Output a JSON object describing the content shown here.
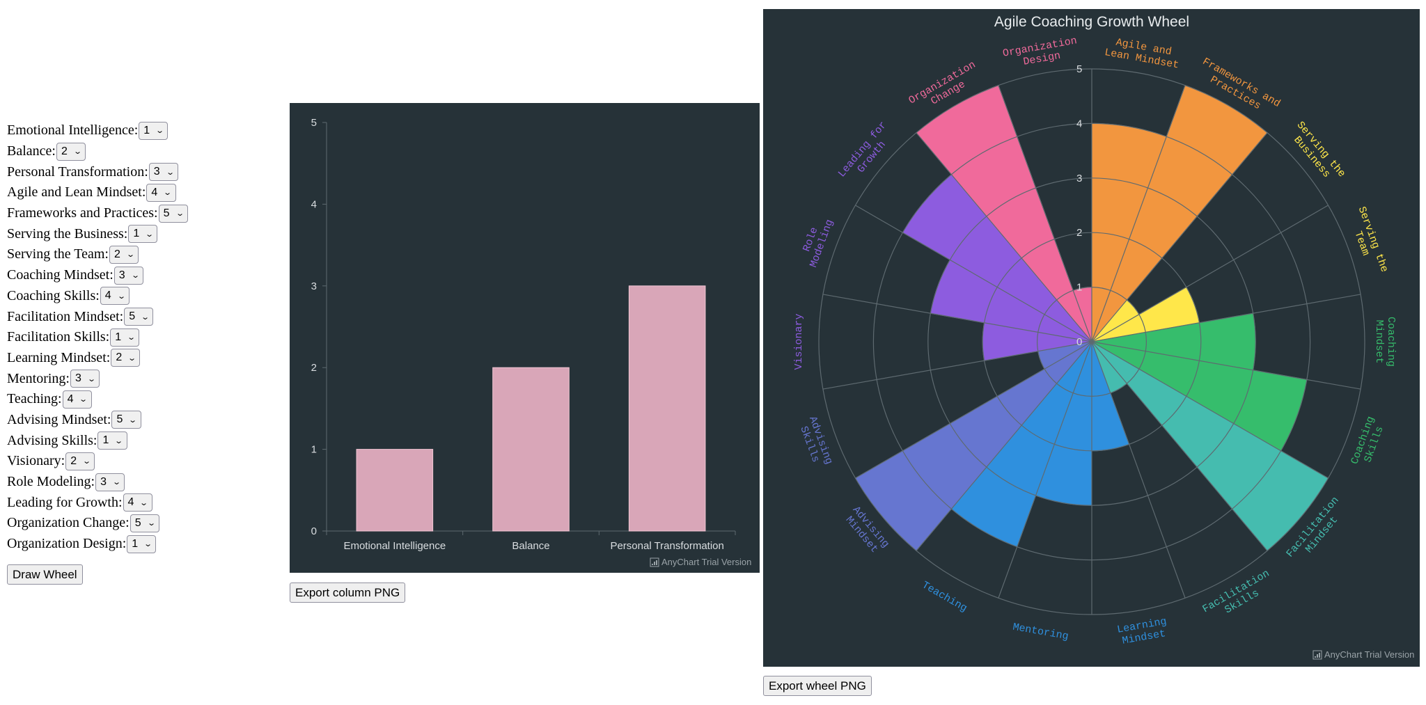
{
  "form": {
    "fields": [
      {
        "label": "Emotional Intelligence:",
        "value": "1"
      },
      {
        "label": "Balance:",
        "value": "2"
      },
      {
        "label": "Personal Transformation:",
        "value": "3"
      },
      {
        "label": "Agile and Lean Mindset:",
        "value": "4"
      },
      {
        "label": "Frameworks and Practices:",
        "value": "5"
      },
      {
        "label": "Serving the Business:",
        "value": "1"
      },
      {
        "label": "Serving the Team:",
        "value": "2"
      },
      {
        "label": "Coaching Mindset:",
        "value": "3"
      },
      {
        "label": "Coaching Skills:",
        "value": "4"
      },
      {
        "label": "Facilitation Mindset:",
        "value": "5"
      },
      {
        "label": "Facilitation Skills:",
        "value": "1"
      },
      {
        "label": "Learning Mindset:",
        "value": "2"
      },
      {
        "label": "Mentoring:",
        "value": "3"
      },
      {
        "label": "Teaching:",
        "value": "4"
      },
      {
        "label": "Advising Mindset:",
        "value": "5"
      },
      {
        "label": "Advising Skills:",
        "value": "1"
      },
      {
        "label": "Visionary:",
        "value": "2"
      },
      {
        "label": "Role Modeling:",
        "value": "3"
      },
      {
        "label": "Leading for Growth:",
        "value": "4"
      },
      {
        "label": "Organization Change:",
        "value": "5"
      },
      {
        "label": "Organization Design:",
        "value": "1"
      }
    ],
    "draw_button": "Draw Wheel"
  },
  "export": {
    "column_button": "Export column PNG",
    "wheel_button": "Export wheel PNG"
  },
  "watermark": "AnyChart Trial Version",
  "colors": {
    "chart_bg": "#263238",
    "column_bar": "#d9a6b8",
    "axis_text": "#d9dde0",
    "grid": "#5e6a70"
  },
  "chart_data": [
    {
      "type": "bar",
      "categories": [
        "Emotional Intelligence",
        "Balance",
        "Personal Transformation"
      ],
      "values": [
        1,
        2,
        3
      ],
      "ylim": [
        0,
        5
      ],
      "yticks": [
        0,
        1,
        2,
        3,
        4,
        5
      ]
    },
    {
      "type": "polar-bar",
      "title": "Agile Coaching Growth Wheel",
      "ylim": [
        0,
        5
      ],
      "rticks": [
        0,
        1,
        2,
        3,
        4,
        5
      ],
      "categories": [
        {
          "label": "Agile and Lean Mindset",
          "value": 4,
          "color": "#f2963f"
        },
        {
          "label": "Frameworks and Practices",
          "value": 5,
          "color": "#f2963f"
        },
        {
          "label": "Serving the Business",
          "value": 1,
          "color": "#ffe74a"
        },
        {
          "label": "Serving the Team",
          "value": 2,
          "color": "#ffe74a"
        },
        {
          "label": "Coaching Mindset",
          "value": 3,
          "color": "#36bd6c"
        },
        {
          "label": "Coaching Skills",
          "value": 4,
          "color": "#36bd6c"
        },
        {
          "label": "Facilitation Mindset",
          "value": 5,
          "color": "#45bcaf"
        },
        {
          "label": "Facilitation Skills",
          "value": 1,
          "color": "#45bcaf"
        },
        {
          "label": "Learning Mindset",
          "value": 2,
          "color": "#2f90de"
        },
        {
          "label": "Mentoring",
          "value": 3,
          "color": "#2f90de"
        },
        {
          "label": "Teaching",
          "value": 4,
          "color": "#2f90de"
        },
        {
          "label": "Advising Mindset",
          "value": 5,
          "color": "#6676d0"
        },
        {
          "label": "Advising Skills",
          "value": 1,
          "color": "#6676d0"
        },
        {
          "label": "Visionary",
          "value": 2,
          "color": "#8d5cdf"
        },
        {
          "label": "Role Modeling",
          "value": 3,
          "color": "#8d5cdf"
        },
        {
          "label": "Leading for Growth",
          "value": 4,
          "color": "#8d5cdf"
        },
        {
          "label": "Organization Change",
          "value": 5,
          "color": "#f06a9b"
        },
        {
          "label": "Organization Design",
          "value": 1,
          "color": "#f06a9b"
        }
      ]
    }
  ]
}
